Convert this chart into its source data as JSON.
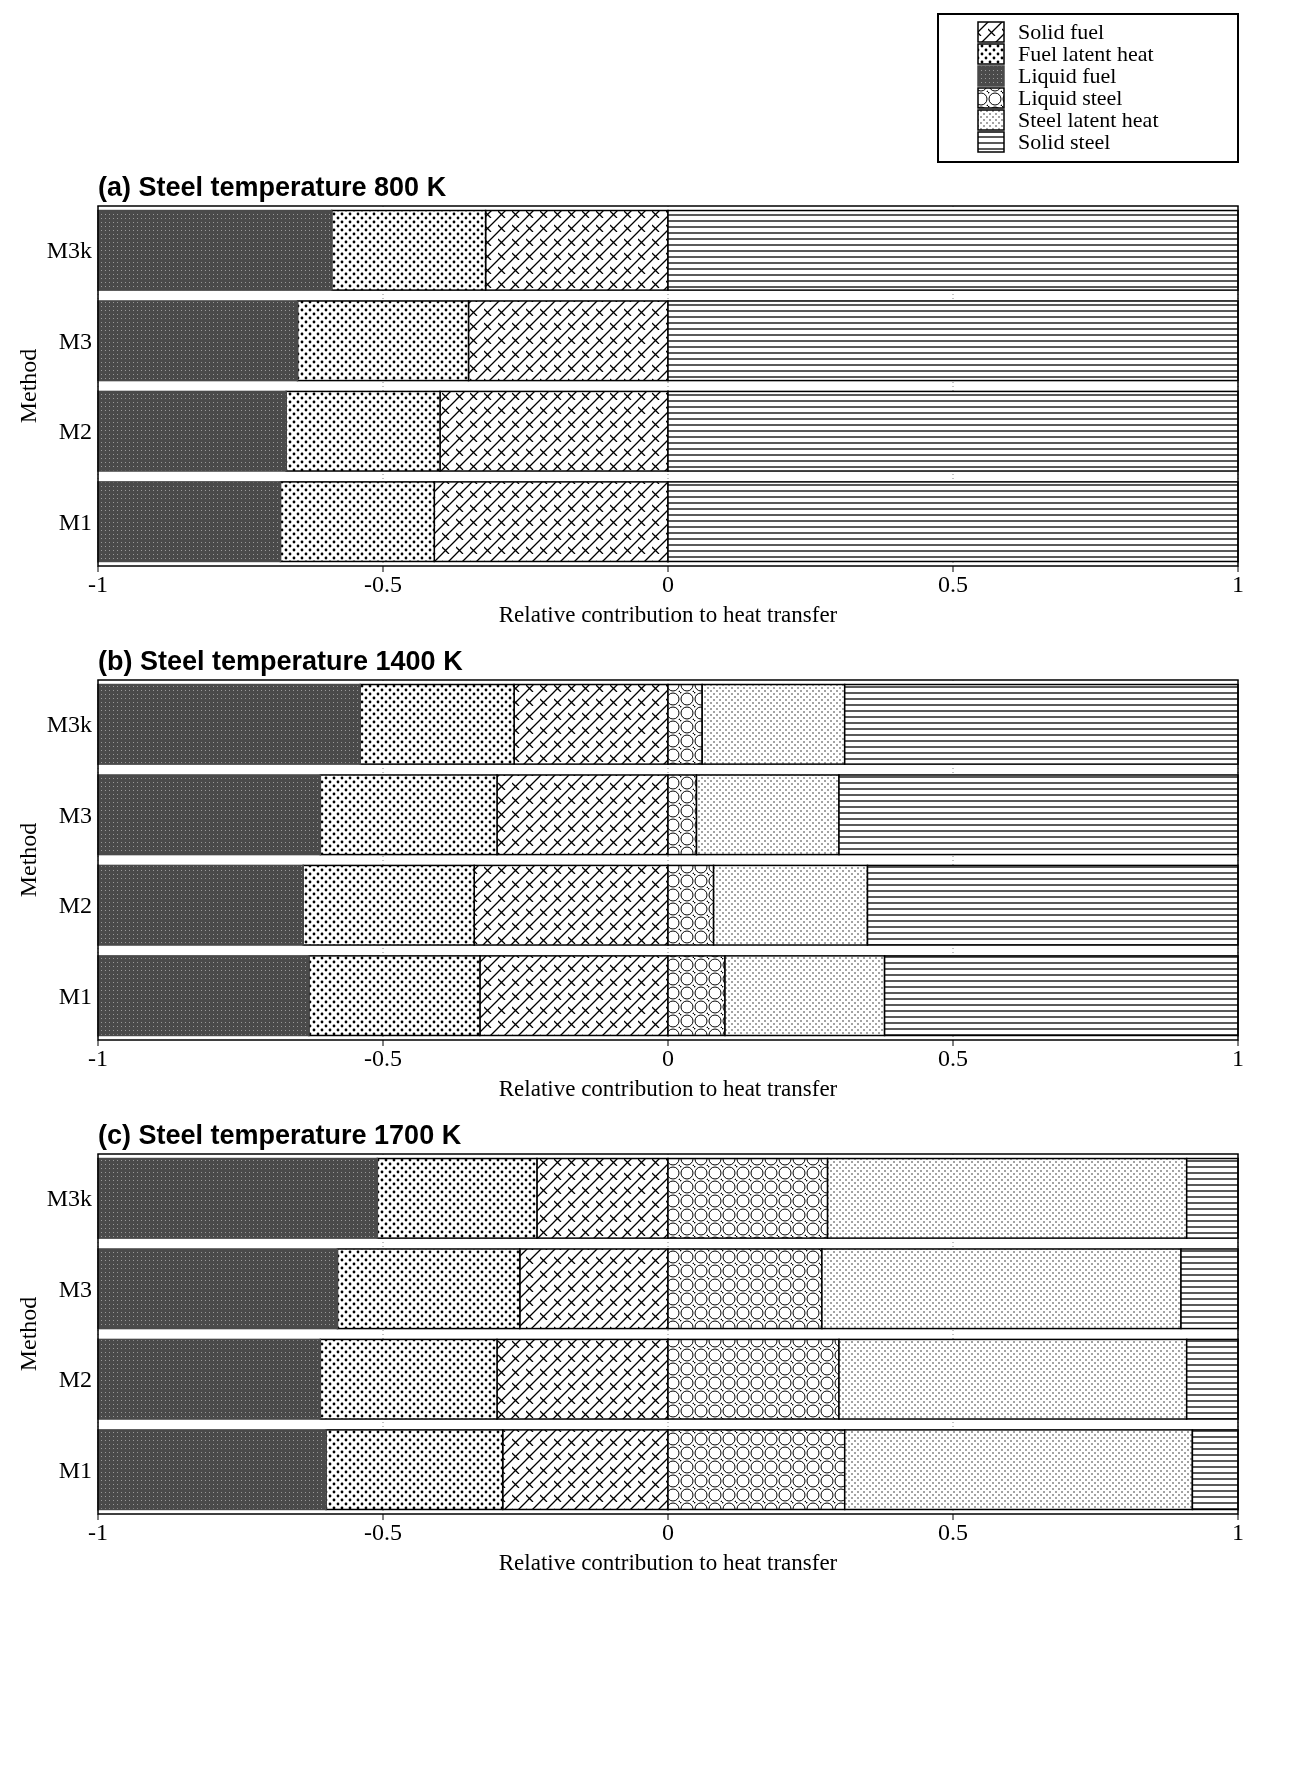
{
  "chart_data": [
    {
      "type": "bar",
      "orientation": "horizontal",
      "stacked": true,
      "title": "(a) Steel temperature 800 K",
      "xlabel": "Relative contribution to heat transfer",
      "ylabel": "Method",
      "categories": [
        "M3k",
        "M3",
        "M2",
        "M1"
      ],
      "xlim": [
        -1,
        1
      ],
      "xticks": [
        -1,
        -0.5,
        0,
        0.5,
        1
      ],
      "grid": "x",
      "legend": "top right",
      "series": [
        {
          "name": "Solid fuel",
          "color": "#000000",
          "values": [
            -0.32,
            -0.35,
            -0.4,
            -0.41
          ]
        },
        {
          "name": "Fuel latent heat",
          "color": "#000000",
          "values": [
            -0.27,
            -0.3,
            -0.27,
            -0.27
          ]
        },
        {
          "name": "Liquid fuel",
          "color": "#4a4a4a",
          "values": [
            -0.41,
            -0.35,
            -0.33,
            -0.32
          ]
        },
        {
          "name": "Liquid steel",
          "color": "#000000",
          "values": [
            null,
            null,
            null,
            null
          ]
        },
        {
          "name": "Steel latent heat",
          "color": "#000000",
          "values": [
            null,
            null,
            null,
            null
          ]
        },
        {
          "name": "Solid steel",
          "color": "#000000",
          "values": [
            1,
            1,
            1,
            1
          ]
        }
      ]
    },
    {
      "type": "bar",
      "orientation": "horizontal",
      "stacked": true,
      "title": "(b) Steel temperature 1400 K",
      "xlabel": "Relative contribution to heat transfer",
      "ylabel": "Method",
      "categories": [
        "M3k",
        "M3",
        "M2",
        "M1"
      ],
      "xlim": [
        -1,
        1
      ],
      "xticks": [
        -1,
        -0.5,
        0,
        0.5,
        1
      ],
      "grid": "x",
      "series": [
        {
          "color": "#000000",
          "values": [
            -0.27,
            -0.3,
            -0.34,
            -0.33
          ]
        },
        {
          "color": "#000000",
          "values": [
            -0.27,
            -0.31,
            -0.3,
            -0.3
          ]
        },
        {
          "color": "#4a4a4a",
          "values": [
            -0.46,
            -0.39,
            -0.36,
            -0.37
          ]
        },
        {
          "color": "#000000",
          "values": [
            0.06,
            0.05,
            0.08,
            0.1
          ]
        },
        {
          "color": "#000000",
          "values": [
            0.25,
            0.25,
            0.27,
            0.28
          ]
        },
        {
          "color": "#000000",
          "values": [
            0.69,
            0.7,
            0.65,
            0.62
          ]
        }
      ]
    },
    {
      "type": "bar",
      "orientation": "horizontal",
      "stacked": true,
      "title": "(c) Steel temperature 1700 K",
      "xlabel": "Relative contribution to heat transfer",
      "ylabel": "Method",
      "categories": [
        "M3k",
        "M3",
        "M2",
        "M1"
      ],
      "xlim": [
        -1,
        1
      ],
      "xticks": [
        -1,
        -0.5,
        0,
        0.5,
        1
      ],
      "grid": "x",
      "series": [
        {
          "color": "#000000",
          "values": [
            -0.23,
            -0.26,
            -0.3,
            -0.29
          ]
        },
        {
          "color": "#000000",
          "values": [
            -0.28,
            -0.32,
            -0.31,
            -0.31
          ]
        },
        {
          "color": "#4a4a4a",
          "values": [
            -0.49,
            -0.42,
            -0.39,
            -0.4
          ]
        },
        {
          "color": "#000000",
          "values": [
            0.28,
            0.27,
            0.3,
            0.31
          ]
        },
        {
          "color": "#000000",
          "values": [
            0.63,
            0.63,
            0.61,
            0.61
          ]
        },
        {
          "color": "#000000",
          "values": [
            0.09,
            0.1,
            0.09,
            0.08
          ]
        }
      ]
    }
  ]
}
